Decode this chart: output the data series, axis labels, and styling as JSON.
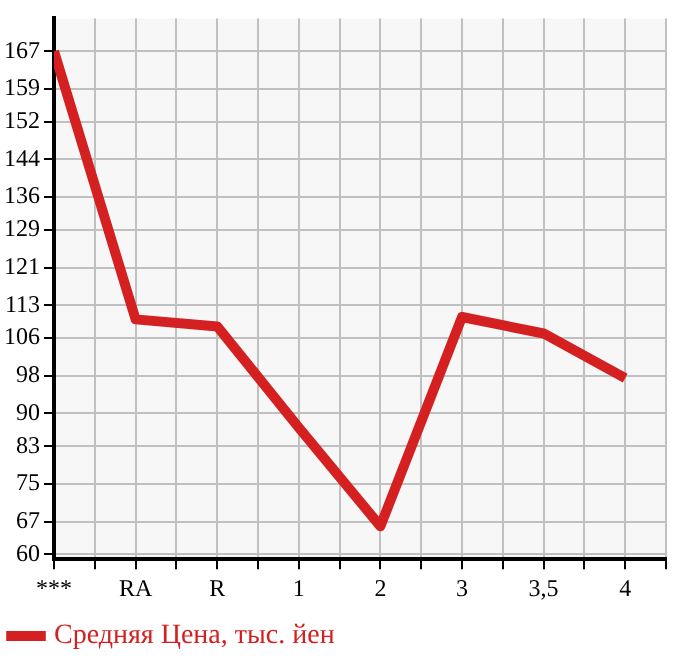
{
  "chart_data": {
    "type": "line",
    "categories": [
      "***",
      "RA",
      "R",
      "1",
      "2",
      "3",
      "3,5",
      "4"
    ],
    "series": [
      {
        "name": "Средняя Цена, тыс. йен",
        "color": "#d42020",
        "values": [
          167,
          110,
          108.5,
          87,
          66,
          110.5,
          107,
          97.5
        ]
      }
    ],
    "ylim": [
      59,
      174
    ],
    "yticks": [
      60,
      67,
      75,
      83,
      90,
      98,
      106,
      113,
      121,
      129,
      136,
      144,
      152,
      159,
      167
    ],
    "grid": true,
    "legend": "bottom left",
    "marker": "none",
    "line_style": "solid"
  }
}
